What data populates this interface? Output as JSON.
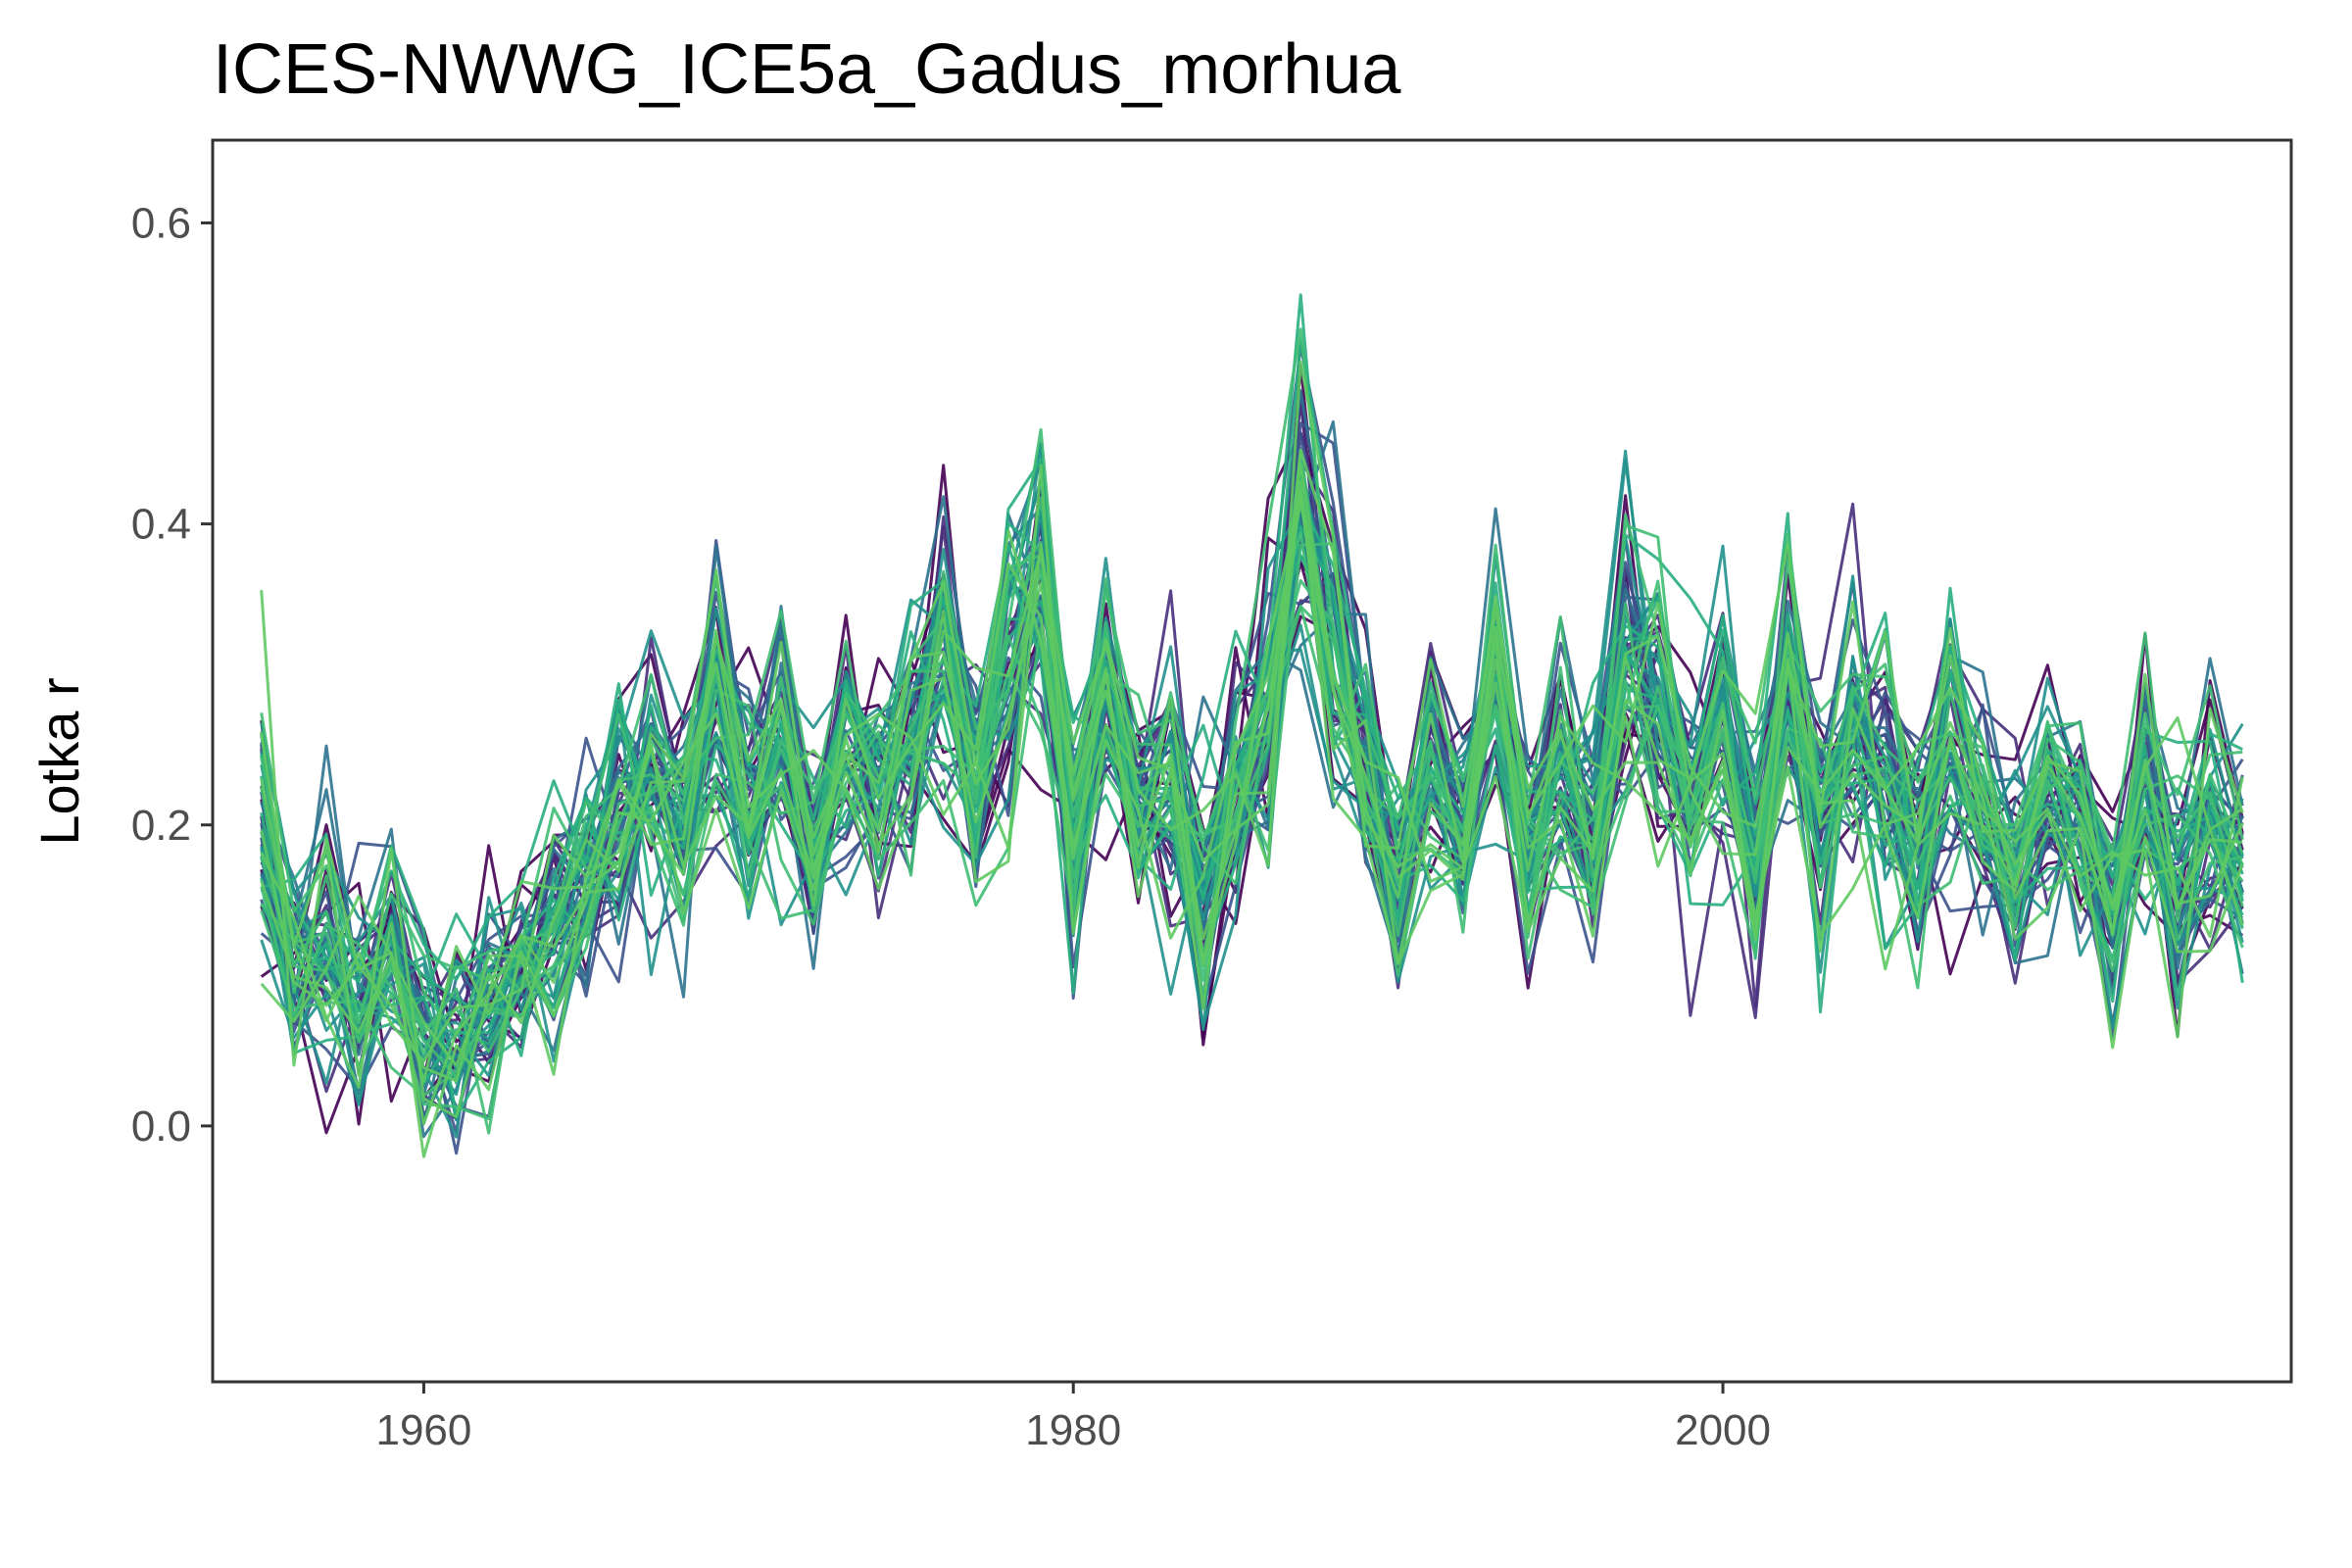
{
  "chart_data": {
    "type": "line",
    "title": "ICES-NWWG_ICE5a_Gadus_morhua",
    "xlabel": "",
    "ylabel": "Lotka r",
    "xlim": [
      1953.5,
      2017.5
    ],
    "ylim": [
      -0.17,
      0.655
    ],
    "x_ticks": [
      1960,
      1980,
      2000
    ],
    "x_tick_labels": [
      "1960",
      "1980",
      "2000"
    ],
    "y_ticks": [
      0.0,
      0.2,
      0.4,
      0.6
    ],
    "y_tick_labels": [
      "0.0",
      "0.2",
      "0.4",
      "0.6"
    ],
    "grid": false,
    "legend": "none",
    "x_start": 1955,
    "x_end": 2016,
    "series_count": 60,
    "palette": [
      "#440154",
      "#472d7b",
      "#3b528b",
      "#2c728e",
      "#21918c",
      "#28ae80",
      "#3fbc73",
      "#5ec962"
    ],
    "central_values": [
      0.2,
      0.1,
      0.12,
      0.08,
      0.12,
      0.06,
      0.05,
      0.08,
      0.11,
      0.14,
      0.16,
      0.2,
      0.23,
      0.2,
      0.27,
      0.22,
      0.26,
      0.18,
      0.26,
      0.22,
      0.27,
      0.32,
      0.22,
      0.3,
      0.36,
      0.2,
      0.28,
      0.22,
      0.23,
      0.15,
      0.23,
      0.28,
      0.42,
      0.32,
      0.24,
      0.16,
      0.24,
      0.2,
      0.3,
      0.18,
      0.24,
      0.2,
      0.31,
      0.28,
      0.22,
      0.26,
      0.18,
      0.3,
      0.2,
      0.26,
      0.24,
      0.19,
      0.26,
      0.21,
      0.17,
      0.22,
      0.2,
      0.15,
      0.23,
      0.16,
      0.21,
      0.18
    ],
    "spread": [
      0.12,
      0.1,
      0.1,
      0.09,
      0.09,
      0.09,
      0.09,
      0.09,
      0.08,
      0.09,
      0.09,
      0.11,
      0.11,
      0.11,
      0.11,
      0.1,
      0.1,
      0.1,
      0.11,
      0.1,
      0.11,
      0.13,
      0.11,
      0.12,
      0.13,
      0.12,
      0.1,
      0.1,
      0.11,
      0.11,
      0.11,
      0.13,
      0.15,
      0.13,
      0.11,
      0.1,
      0.1,
      0.1,
      0.12,
      0.1,
      0.11,
      0.11,
      0.13,
      0.12,
      0.11,
      0.11,
      0.1,
      0.12,
      0.11,
      0.12,
      0.12,
      0.11,
      0.11,
      0.1,
      0.1,
      0.1,
      0.1,
      0.1,
      0.1,
      0.1,
      0.1,
      0.1
    ]
  }
}
